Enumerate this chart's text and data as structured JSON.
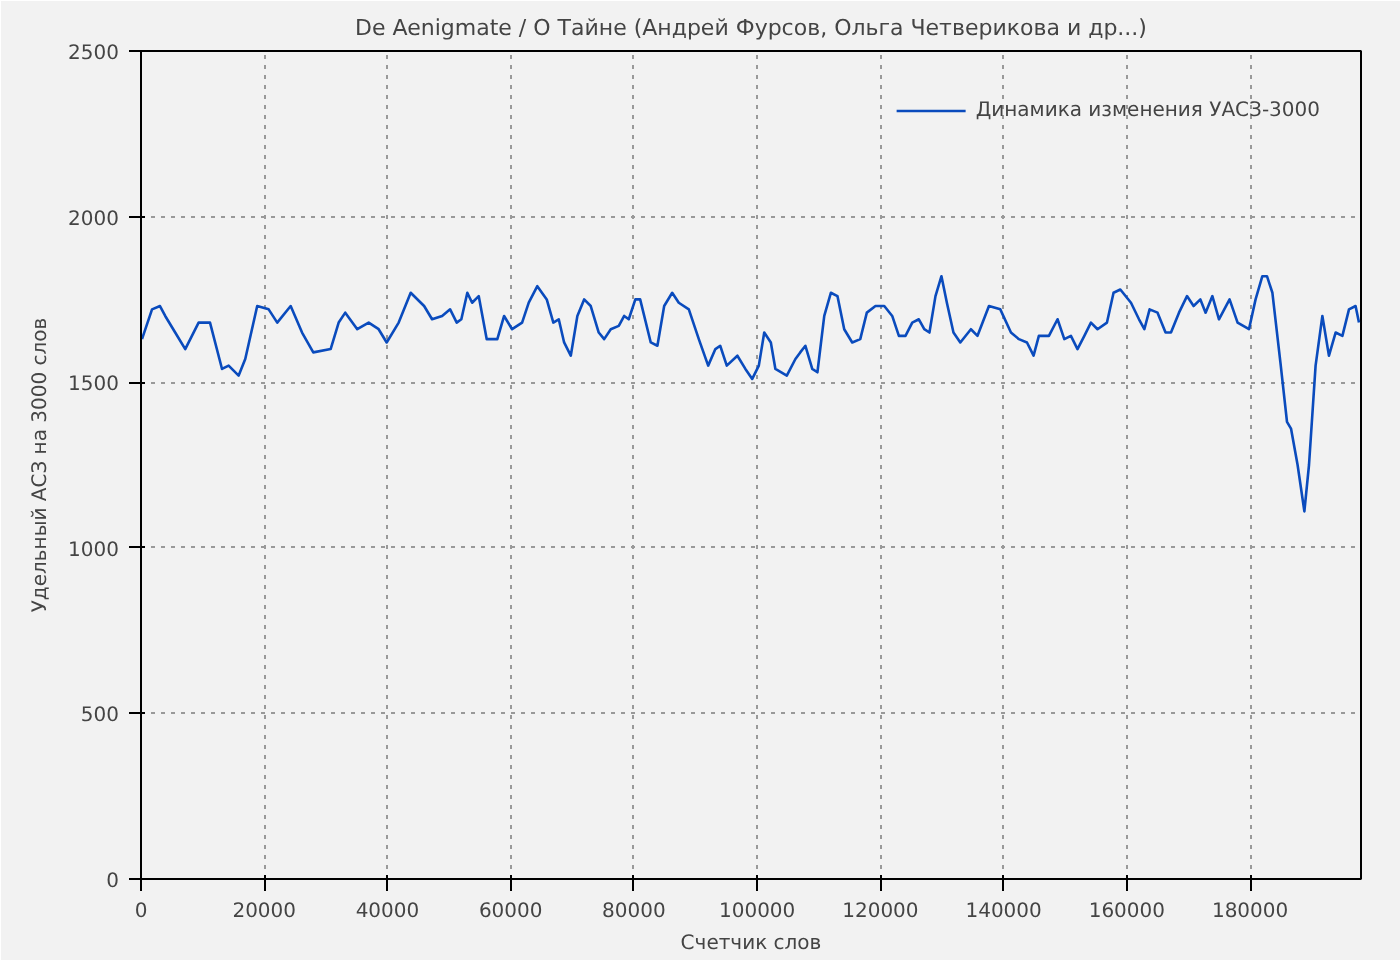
{
  "chart_data": {
    "type": "line",
    "title": "De Aenigmate / О Тайне (Андрей Фурсов, Ольга Четверикова и др...)",
    "xlabel": "Счетчик слов",
    "ylabel": "Удельный АСЗ на 3000 слов",
    "xlim": [
      0,
      198000
    ],
    "xticks": [
      0,
      20000,
      40000,
      60000,
      80000,
      100000,
      120000,
      140000,
      160000,
      180000
    ],
    "ylim": [
      0,
      2500
    ],
    "yticks": [
      0,
      500,
      1000,
      1500,
      2000,
      2500
    ],
    "grid": true,
    "legend": "top right",
    "line_style": "solid",
    "series": [
      {
        "name": "Динамика изменения УАСЗ-3000",
        "color": "#0a4bbd",
        "x": [
          160,
          1790,
          3080,
          3930,
          5550,
          7180,
          9350,
          11200,
          13150,
          14220,
          15850,
          16920,
          18860,
          20720,
          22110,
          24290,
          26140,
          27960,
          30780,
          32080,
          33150,
          35100,
          36950,
          38570,
          39870,
          41820,
          43770,
          45950,
          47240,
          48870,
          50170,
          51240,
          51990,
          52960,
          53740,
          54810,
          56110,
          57830,
          58930,
          60230,
          61850,
          62930,
          64320,
          65850,
          66920,
          67800,
          68670,
          69750,
          70820,
          71920,
          72990,
          74290,
          75170,
          76240,
          77540,
          78420,
          79160,
          80230,
          81010,
          82730,
          83810,
          84910,
          86210,
          87280,
          88910,
          90530,
          92050,
          93220,
          94000,
          95070,
          96790,
          98090,
          99200,
          100270,
          101150,
          102220,
          102960,
          104810,
          106210,
          106990,
          107830,
          108940,
          109780,
          110890,
          111960,
          113030,
          114130,
          115430,
          116730,
          117800,
          119200,
          120630,
          121920,
          123000,
          124070,
          125170,
          126240,
          127120,
          127960,
          128940,
          129910,
          130790,
          131860,
          132970,
          134690,
          135760,
          137620,
          139460,
          141190,
          142480,
          143790,
          144860,
          145720,
          147350,
          148750,
          149850,
          150920,
          151990,
          153100,
          154170,
          155240,
          156770,
          157840,
          158940,
          160670,
          161970,
          162840,
          163690,
          164980,
          166280,
          167160,
          168460,
          169760,
          170830,
          171930,
          172780,
          173880,
          174950,
          176670,
          177970,
          179820,
          180890,
          181990,
          182740,
          183620,
          184920,
          185990,
          186640,
          187710,
          188810,
          189560,
          190630,
          191730,
          192800,
          193880,
          194980,
          196050,
          197120,
          197670
        ],
        "values": [
          1630,
          1720,
          1730,
          1700,
          1650,
          1600,
          1680,
          1680,
          1540,
          1550,
          1520,
          1570,
          1730,
          1720,
          1680,
          1730,
          1650,
          1590,
          1600,
          1680,
          1710,
          1660,
          1680,
          1660,
          1620,
          1680,
          1770,
          1730,
          1690,
          1700,
          1720,
          1680,
          1690,
          1770,
          1740,
          1760,
          1630,
          1630,
          1700,
          1660,
          1680,
          1740,
          1790,
          1750,
          1680,
          1690,
          1620,
          1580,
          1700,
          1750,
          1730,
          1650,
          1630,
          1660,
          1670,
          1700,
          1690,
          1750,
          1750,
          1620,
          1610,
          1730,
          1770,
          1740,
          1720,
          1630,
          1550,
          1600,
          1610,
          1550,
          1580,
          1540,
          1510,
          1550,
          1650,
          1620,
          1540,
          1520,
          1570,
          1590,
          1610,
          1540,
          1530,
          1700,
          1770,
          1760,
          1660,
          1620,
          1630,
          1710,
          1730,
          1730,
          1700,
          1640,
          1640,
          1680,
          1690,
          1660,
          1650,
          1760,
          1820,
          1740,
          1650,
          1620,
          1660,
          1640,
          1730,
          1720,
          1650,
          1630,
          1620,
          1580,
          1640,
          1640,
          1690,
          1630,
          1640,
          1600,
          1640,
          1680,
          1660,
          1680,
          1770,
          1780,
          1740,
          1690,
          1660,
          1720,
          1710,
          1650,
          1650,
          1710,
          1760,
          1730,
          1750,
          1710,
          1760,
          1690,
          1750,
          1680,
          1660,
          1750,
          1820,
          1820,
          1770,
          1560,
          1380,
          1360,
          1250,
          1110,
          1250,
          1550,
          1700,
          1580,
          1650,
          1640,
          1720,
          1730,
          1680
        ]
      }
    ]
  }
}
